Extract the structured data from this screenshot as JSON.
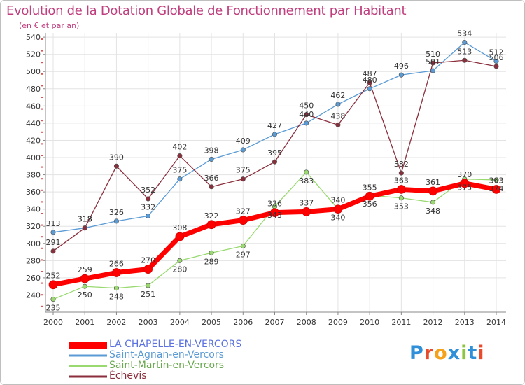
{
  "chart_data": {
    "type": "line",
    "title": "Evolution de la Dotation Globale de Fonctionnement par Habitant",
    "subtitle": "(en € et par an)",
    "categories": [
      "2000",
      "2001",
      "2002",
      "2003",
      "2004",
      "2005",
      "2006",
      "2007",
      "2008",
      "2009",
      "2010",
      "2011",
      "2012",
      "2013",
      "2014"
    ],
    "y_ticks": [
      "240",
      "260",
      "280",
      "300",
      "320",
      "340",
      "360",
      "380",
      "400",
      "420",
      "440",
      "460",
      "480",
      "500",
      "520",
      "540"
    ],
    "ylim": [
      220,
      545
    ],
    "series": [
      {
        "name": "LA CHAPELLE-EN-VERCORS",
        "color": "#ff0000",
        "values": [
          252,
          259,
          266,
          270,
          308,
          322,
          327,
          336,
          337,
          340,
          355,
          363,
          361,
          370,
          363
        ]
      },
      {
        "name": "Saint-Agnan-en-Vercors",
        "color": "#5b9bd5",
        "values": [
          313,
          318,
          326,
          332,
          375,
          398,
          409,
          427,
          440,
          462,
          480,
          496,
          501,
          534,
          512
        ]
      },
      {
        "name": "Saint-Martin-en-Vercors",
        "color": "#99d970",
        "values": [
          235,
          250,
          248,
          251,
          280,
          289,
          297,
          343,
          383,
          340,
          356,
          353,
          348,
          375,
          374
        ]
      },
      {
        "name": "Échevis",
        "color": "#8b2e3c",
        "values": [
          291,
          318,
          390,
          352,
          402,
          366,
          375,
          395,
          450,
          438,
          487,
          382,
          510,
          513,
          506
        ]
      }
    ],
    "logo": {
      "text": "Proxiti",
      "letters": [
        "P",
        "r",
        "o",
        "x",
        "i",
        "t",
        "i"
      ],
      "colors": [
        "#2f8fd8",
        "#e84a2c",
        "#f5a21b",
        "#2f8fd8",
        "#8cc63f",
        "#2f8fd8",
        "#e84a2c"
      ]
    }
  }
}
